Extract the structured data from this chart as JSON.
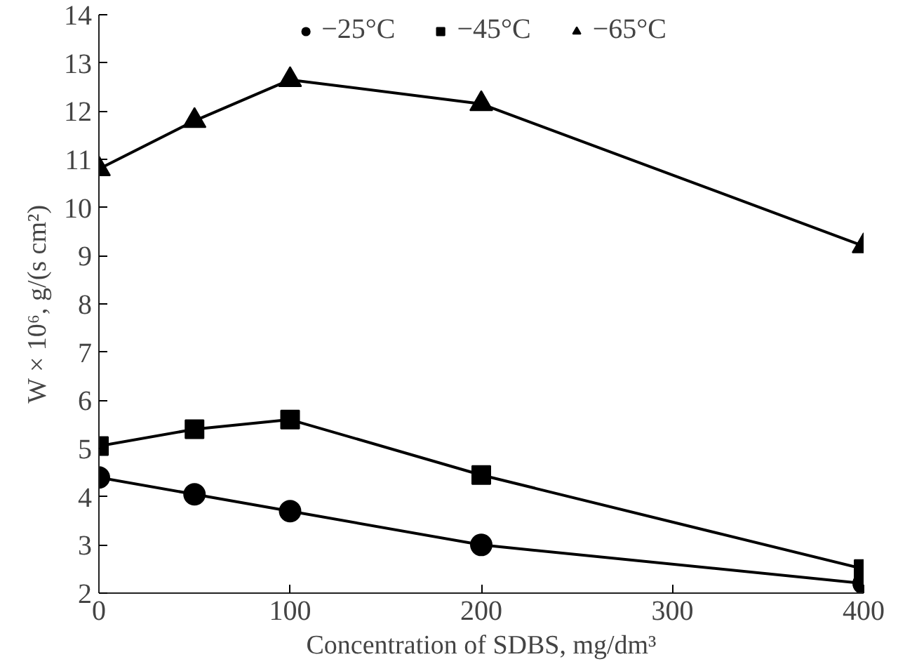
{
  "chart_data": {
    "type": "line",
    "xlabel": "Concentration of SDBS, mg/dm³",
    "ylabel": "W × 10⁶, g/(s cm²)",
    "x": [
      0,
      50,
      100,
      200,
      400
    ],
    "series": [
      {
        "name": "−25°C",
        "color": "#000000",
        "marker": "circle",
        "values": [
          4.4,
          4.05,
          3.7,
          3.0,
          2.2
        ]
      },
      {
        "name": "−45°C",
        "color": "#000000",
        "marker": "square",
        "values": [
          5.05,
          5.4,
          5.6,
          4.45,
          2.5
        ]
      },
      {
        "name": "−65°C",
        "color": "#000000",
        "marker": "triangle",
        "values": [
          10.8,
          11.8,
          12.65,
          12.15,
          9.2
        ]
      }
    ],
    "xlim": [
      0,
      400
    ],
    "xticks": [
      0,
      100,
      200,
      300,
      400
    ],
    "ylim": [
      2,
      14
    ],
    "yticks": [
      2,
      3,
      4,
      5,
      6,
      7,
      8,
      9,
      10,
      11,
      12,
      13,
      14
    ],
    "grid": false,
    "legend": "top",
    "line_style": "solid"
  }
}
